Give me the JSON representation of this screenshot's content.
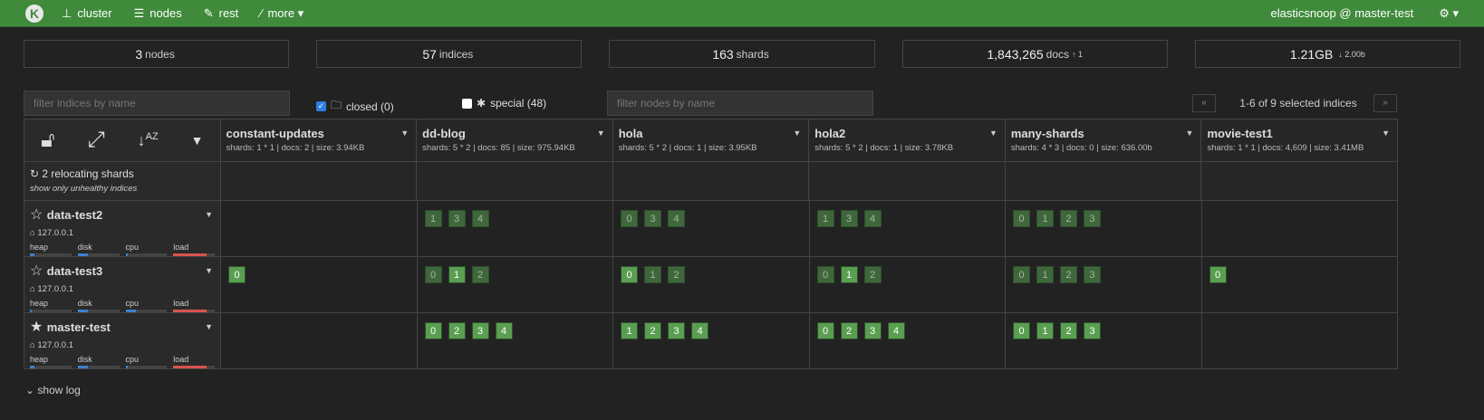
{
  "nav": {
    "logo": "K",
    "items": [
      {
        "icon": "sitemap-icon",
        "label": "cluster"
      },
      {
        "icon": "server-icon",
        "label": "nodes"
      },
      {
        "icon": "edit-icon",
        "label": "rest"
      },
      {
        "icon": "magic-wand-icon",
        "label": "more ▾"
      }
    ],
    "user": "elasticsnoop @ master-test",
    "settings": "⚙ ▾"
  },
  "stats": [
    {
      "value": "3",
      "label": "nodes",
      "extra": ""
    },
    {
      "value": "57",
      "label": "indices",
      "extra": ""
    },
    {
      "value": "163",
      "label": "shards",
      "extra": ""
    },
    {
      "value": "1,843,265",
      "label": "docs",
      "extra": "↑ 1"
    },
    {
      "value": "1.21GB",
      "label": "",
      "extra": "↓ 2.00b"
    }
  ],
  "filters": {
    "indices_placeholder": "filter indices by name",
    "closed_label": "closed (0)",
    "closed_checked": true,
    "special_label": "special (48)",
    "special_checked": false,
    "nodes_placeholder": "filter nodes by name",
    "prev": "«",
    "next": "»",
    "pagination": "1-6 of 9 selected indices"
  },
  "relocating": {
    "text": "2 relocating shards",
    "link": "show only unhealthy indices"
  },
  "indices": [
    {
      "name": "constant-updates",
      "meta": "shards: 1 * 1 | docs: 2 | size: 3.94KB"
    },
    {
      "name": "dd-blog",
      "meta": "shards: 5 * 2 | docs: 85 | size: 975.94KB"
    },
    {
      "name": "hola",
      "meta": "shards: 5 * 2 | docs: 1 | size: 3.95KB"
    },
    {
      "name": "hola2",
      "meta": "shards: 5 * 2 | docs: 1 | size: 3.78KB"
    },
    {
      "name": "many-shards",
      "meta": "shards: 4 * 3 | docs: 0 | size: 636.00b"
    },
    {
      "name": "movie-test1",
      "meta": "shards: 1 * 1 | docs: 4,609 | size: 3.41MB"
    }
  ],
  "metric_labels": [
    "heap",
    "disk",
    "cpu",
    "load"
  ],
  "nodes": [
    {
      "name": "data-test2",
      "master": false,
      "ip": "127.0.0.1",
      "metrics": [
        10,
        25,
        5,
        80
      ],
      "shards": [
        [],
        [
          [
            "1",
            "r"
          ],
          [
            "3",
            "r"
          ],
          [
            "4",
            "r"
          ]
        ],
        [
          [
            "0",
            "r"
          ],
          [
            "3",
            "r"
          ],
          [
            "4",
            "r"
          ]
        ],
        [
          [
            "1",
            "r"
          ],
          [
            "3",
            "r"
          ],
          [
            "4",
            "r"
          ]
        ],
        [
          [
            "0",
            "r"
          ],
          [
            "1",
            "r"
          ],
          [
            "2",
            "r"
          ],
          [
            "3",
            "r"
          ]
        ],
        []
      ]
    },
    {
      "name": "data-test3",
      "master": false,
      "ip": "127.0.0.1",
      "metrics": [
        5,
        25,
        25,
        80
      ],
      "shards": [
        [
          [
            "0",
            "p"
          ]
        ],
        [
          [
            "0",
            "r"
          ],
          [
            "1",
            "p"
          ],
          [
            "2",
            "r"
          ]
        ],
        [
          [
            "0",
            "p"
          ],
          [
            "1",
            "r"
          ],
          [
            "2",
            "r"
          ]
        ],
        [
          [
            "0",
            "r"
          ],
          [
            "1",
            "p"
          ],
          [
            "2",
            "r"
          ]
        ],
        [
          [
            "0",
            "r"
          ],
          [
            "1",
            "r"
          ],
          [
            "2",
            "r"
          ],
          [
            "3",
            "r"
          ]
        ],
        [
          [
            "0",
            "p"
          ]
        ]
      ]
    },
    {
      "name": "master-test",
      "master": true,
      "ip": "127.0.0.1",
      "metrics": [
        10,
        25,
        5,
        80
      ],
      "shards": [
        [],
        [
          [
            "0",
            "p"
          ],
          [
            "2",
            "p"
          ],
          [
            "3",
            "p"
          ],
          [
            "4",
            "p"
          ]
        ],
        [
          [
            "1",
            "p"
          ],
          [
            "2",
            "p"
          ],
          [
            "3",
            "p"
          ],
          [
            "4",
            "p"
          ]
        ],
        [
          [
            "0",
            "p"
          ],
          [
            "2",
            "p"
          ],
          [
            "3",
            "p"
          ],
          [
            "4",
            "p"
          ]
        ],
        [
          [
            "0",
            "p"
          ],
          [
            "1",
            "p"
          ],
          [
            "2",
            "p"
          ],
          [
            "3",
            "p"
          ]
        ],
        []
      ]
    }
  ],
  "show_log": "show log"
}
